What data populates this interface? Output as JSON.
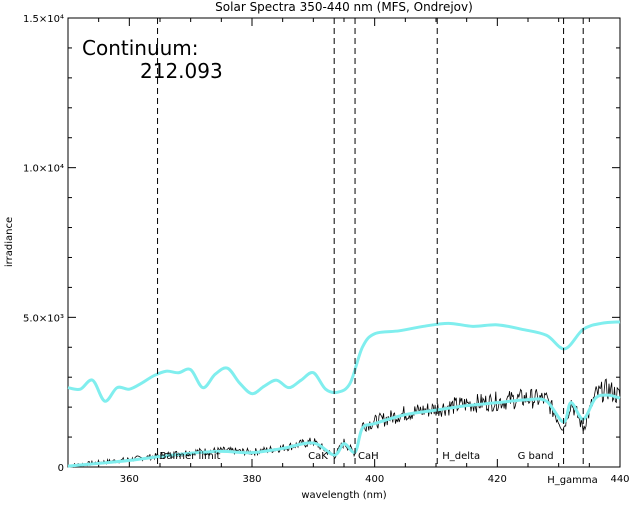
{
  "chart_data": {
    "type": "line",
    "title": "Solar Spectra 350-440 nm (MFS, Ondrejov)",
    "xlabel": "wavelength (nm)",
    "ylabel": "irradiance",
    "xlim": [
      350,
      440
    ],
    "ylim": [
      0,
      15000
    ],
    "x_ticks": [
      360,
      380,
      400,
      420,
      440
    ],
    "x_tick_labels": [
      "360",
      "380",
      "400",
      "420",
      "440"
    ],
    "y_ticks": [
      0,
      5000,
      10000,
      15000
    ],
    "y_tick_labels": [
      "0",
      "5.0×10³",
      "1.0×10⁴",
      "1.5×10⁴"
    ],
    "grid": false,
    "continuum": {
      "label": "Continuum:",
      "value": "212.093"
    },
    "line_markers": [
      {
        "x": 364.6,
        "label": "Balmer limit"
      },
      {
        "x": 393.4,
        "label": "CaK"
      },
      {
        "x": 396.8,
        "label": "CaH"
      },
      {
        "x": 410.2,
        "label": "H_delta"
      },
      {
        "x": 430.8,
        "label": "G band"
      },
      {
        "x": 434.0,
        "label": "H_gamma"
      }
    ],
    "series": [
      {
        "color": "#000000",
        "style": "noisy-black",
        "x": [
          350,
          355,
          360,
          365,
          370,
          375,
          380,
          385,
          390,
          393.4,
          395,
          396.8,
          398,
          400,
          405,
          410,
          415,
          420,
          425,
          428,
          430.8,
          432,
          434,
          436,
          438,
          440
        ],
        "y": [
          40,
          150,
          250,
          380,
          500,
          550,
          500,
          640,
          850,
          350,
          820,
          450,
          1400,
          1500,
          1800,
          1950,
          2100,
          2200,
          2300,
          2250,
          1300,
          2200,
          1300,
          2400,
          2600,
          2350
        ]
      },
      {
        "color": "#80eeee",
        "style": "smooth-cyan",
        "x": [
          350,
          355,
          360,
          365,
          370,
          375,
          380,
          385,
          390,
          393.4,
          395,
          396.8,
          398,
          400,
          405,
          410,
          415,
          420,
          425,
          428,
          430.8,
          432,
          434,
          436,
          438,
          440
        ],
        "y": [
          30,
          120,
          220,
          350,
          460,
          520,
          480,
          620,
          800,
          400,
          780,
          500,
          1300,
          1450,
          1750,
          1900,
          2050,
          2150,
          2250,
          2200,
          1500,
          2150,
          1600,
          2300,
          2400,
          2300
        ]
      },
      {
        "color": "#80eeee",
        "style": "thick-cyan",
        "x": [
          350,
          352,
          354,
          356,
          358,
          360,
          362,
          364,
          366,
          368,
          370,
          372,
          374,
          376,
          378,
          380,
          382,
          384,
          386,
          388,
          390,
          392,
          394,
          396,
          398,
          400,
          404,
          408,
          412,
          416,
          420,
          424,
          428,
          431,
          434,
          437,
          440
        ],
        "y": [
          2650,
          2600,
          2900,
          2200,
          2650,
          2600,
          2800,
          3050,
          3200,
          3150,
          3250,
          2650,
          3100,
          3300,
          2800,
          2450,
          2700,
          2900,
          2650,
          2900,
          3150,
          2600,
          2500,
          2800,
          4000,
          4450,
          4550,
          4700,
          4800,
          4700,
          4750,
          4600,
          4400,
          3950,
          4600,
          4800,
          4850
        ]
      }
    ]
  }
}
